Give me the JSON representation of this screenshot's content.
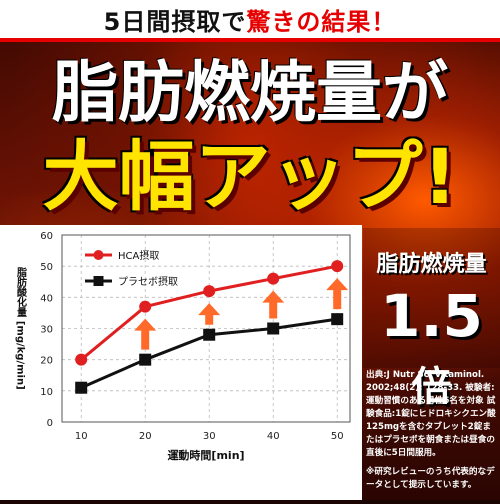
{
  "banner": {
    "prefix": "5日間摂取で",
    "accent": "驚きの結果",
    "suffix": "！"
  },
  "headline": {
    "line1": "脂肪燃焼量が",
    "line2": "大幅アップ!"
  },
  "badge": {
    "title": "脂肪燃焼量",
    "value": "1.5",
    "unit": "倍"
  },
  "notes": {
    "source": "出典:J Nutr Sci Vitaminol. 2002;48(2): 128-33. 被験者:運動習慣のある男性6名を対象 試験食品:1錠にヒドロキシクエン酸125mgを含むタブレット2錠またはプラセボを朝食または昼食の直後に5日間服用。",
    "disclaimer": "※研究レビューのうち代表的なデータとして提示しています。"
  },
  "colors": {
    "hca": "#e02020",
    "placebo": "#111111",
    "arrow": "#ff6a2a",
    "accent": "#e60000",
    "headline_yellow": "#ffe400"
  },
  "chart_data": {
    "type": "line",
    "xlabel": "運動時間[min]",
    "ylabel": "脂肪酸化量 [mg/kg/min]",
    "x": [
      10,
      20,
      30,
      40,
      50
    ],
    "xlim": [
      7,
      52
    ],
    "ylim": [
      0,
      60
    ],
    "yticks": [
      0,
      10,
      20,
      30,
      40,
      50,
      60
    ],
    "grid": true,
    "legend": "top-left",
    "series": [
      {
        "name": "HCA摂取",
        "values": [
          20,
          37,
          42,
          46,
          50
        ],
        "marker": "circle"
      },
      {
        "name": "プラセボ摂取",
        "values": [
          11,
          20,
          28,
          30,
          33
        ],
        "marker": "square"
      }
    ],
    "arrows_at": [
      20,
      30,
      40,
      50
    ]
  }
}
